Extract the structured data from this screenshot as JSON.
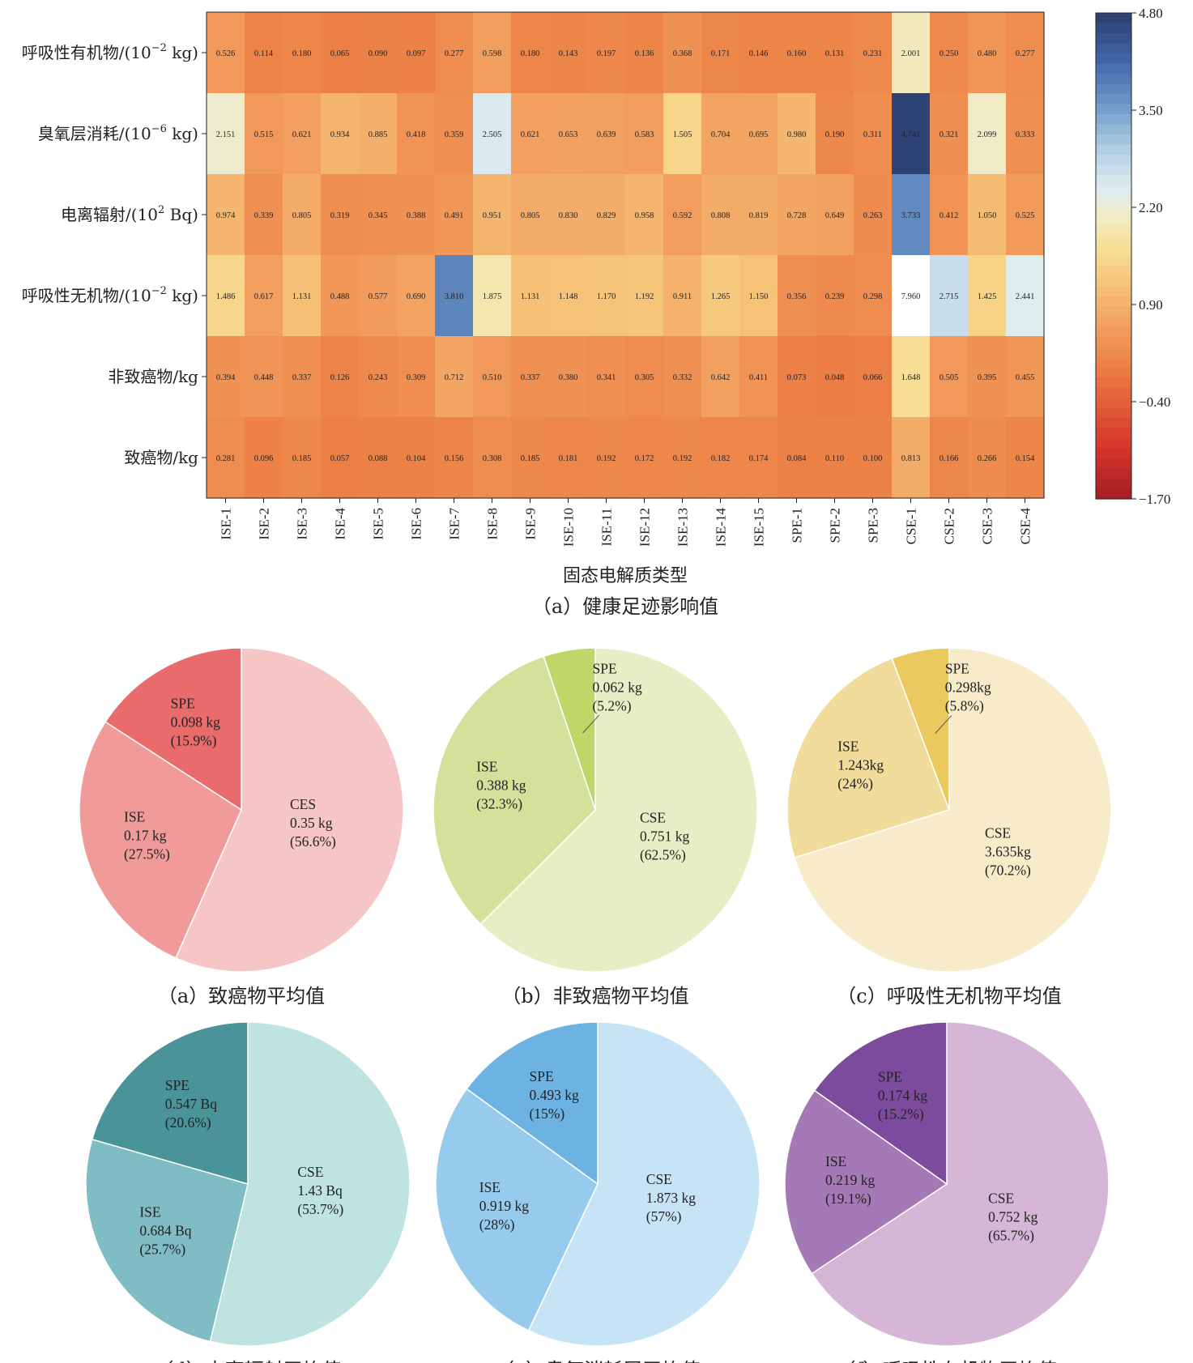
{
  "chart_data": [
    {
      "type": "heatmap",
      "rows": [
        {
          "label": "呼吸性有机物/(10",
          "sup": "−2",
          "suffix": " kg)"
        },
        {
          "label": "臭氧层消耗/(10",
          "sup": "−6",
          "suffix": " kg)"
        },
        {
          "label": "电离辐射/(10",
          "sup": "2",
          "suffix": " Bq)"
        },
        {
          "label": "呼吸性无机物/(10",
          "sup": "−2",
          "suffix": " kg)"
        },
        {
          "label": "非致癌物/kg",
          "sup": "",
          "suffix": ""
        },
        {
          "label": "致癌物/kg",
          "sup": "",
          "suffix": ""
        }
      ],
      "columns": [
        "ISE-1",
        "ISE-2",
        "ISE-3",
        "ISE-4",
        "ISE-5",
        "ISE-6",
        "ISE-7",
        "ISE-8",
        "ISE-9",
        "ISE-10",
        "ISE-11",
        "ISE-12",
        "ISE-13",
        "ISE-14",
        "ISE-15",
        "SPE-1",
        "SPE-2",
        "SPE-3",
        "CSE-1",
        "CSE-2",
        "CSE-3",
        "CSE-4"
      ],
      "values": [
        [
          "0.526",
          "0.114",
          "0.180",
          "0.065",
          "0.090",
          "0.097",
          "0.277",
          "0.598",
          "0.180",
          "0.143",
          "0.197",
          "0.136",
          "0.368",
          "0.171",
          "0.146",
          "0.160",
          "0.131",
          "0.231",
          "2.001",
          "0.250",
          "0.480",
          "0.277"
        ],
        [
          "2.151",
          "0.515",
          "0.621",
          "0.934",
          "0.885",
          "0.418",
          "0.359",
          "2.505",
          "0.621",
          "0.653",
          "0.639",
          "0.583",
          "1.505",
          "0.704",
          "0.695",
          "0.980",
          "0.190",
          "0.311",
          "4.741",
          "0.321",
          "2.099",
          "0.333"
        ],
        [
          "0.974",
          "0.339",
          "0.805",
          "0.319",
          "0.345",
          "0.388",
          "0.491",
          "0.951",
          "0.805",
          "0.830",
          "0.829",
          "0.958",
          "0.592",
          "0.808",
          "0.819",
          "0.728",
          "0.649",
          "0.263",
          "3.733",
          "0.412",
          "1.050",
          "0.525"
        ],
        [
          "1.486",
          "0.617",
          "1.131",
          "0.488",
          "0.577",
          "0.690",
          "3.810",
          "1.875",
          "1.131",
          "1.148",
          "1.170",
          "1.192",
          "0.911",
          "1.265",
          "1.150",
          "0.356",
          "0.239",
          "0.298",
          "7.960",
          "2.715",
          "1.425",
          "2.441"
        ],
        [
          "0.394",
          "0.448",
          "0.337",
          "0.126",
          "0.243",
          "0.309",
          "0.712",
          "0.510",
          "0.337",
          "0.380",
          "0.341",
          "0.305",
          "0.332",
          "0.642",
          "0.411",
          "0.073",
          "0.048",
          "0.066",
          "1.648",
          "0.505",
          "0.395",
          "0.455"
        ],
        [
          "0.281",
          "0.096",
          "0.185",
          "0.057",
          "0.088",
          "0.104",
          "0.156",
          "0.308",
          "0.185",
          "0.181",
          "0.192",
          "0.172",
          "0.192",
          "0.182",
          "0.174",
          "0.084",
          "0.110",
          "0.100",
          "0.813",
          "0.166",
          "0.266",
          "0.154"
        ]
      ],
      "xlabel": "固态电解质类型",
      "caption": "（a）健康足迹影响值",
      "colorbar": {
        "range": [
          -1.7,
          4.8
        ],
        "ticks": [
          "4.80",
          "3.50",
          "2.20",
          "0.90",
          "−0.40",
          "−1.70"
        ]
      }
    },
    {
      "type": "pie",
      "caption": "（a）致癌物平均值",
      "colors": [
        "#f6c5c5",
        "#f09a9a",
        "#e96b6b"
      ],
      "slices": [
        {
          "name": "CES",
          "value": 0.35,
          "unit": "0.35 kg",
          "pct": "(56.6%)"
        },
        {
          "name": "ISE",
          "value": 0.17,
          "unit": "0.17 kg",
          "pct": "(27.5%)"
        },
        {
          "name": "SPE",
          "value": 0.098,
          "unit": "0.098 kg",
          "pct": "(15.9%)"
        }
      ]
    },
    {
      "type": "pie",
      "caption": "（b）非致癌物平均值",
      "colors": [
        "#e5eec4",
        "#d3e19a",
        "#bfd768"
      ],
      "slices": [
        {
          "name": "CSE",
          "value": 0.751,
          "unit": "0.751 kg",
          "pct": "(62.5%)"
        },
        {
          "name": "ISE",
          "value": 0.388,
          "unit": "0.388 kg",
          "pct": "(32.3%)"
        },
        {
          "name": "SPE",
          "value": 0.062,
          "unit": "0.062 kg",
          "pct": "(5.2%)"
        }
      ]
    },
    {
      "type": "pie",
      "caption": "（c）呼吸性无机物平均值",
      "colors": [
        "#f7ebc9",
        "#f1dc9c",
        "#ebc95f"
      ],
      "slices": [
        {
          "name": "CSE",
          "value": 3.635,
          "unit": "3.635kg",
          "pct": "(70.2%)"
        },
        {
          "name": "ISE",
          "value": 1.243,
          "unit": "1.243kg",
          "pct": "(24%)"
        },
        {
          "name": "SPE",
          "value": 0.298,
          "unit": "0.298kg",
          "pct": "(5.8%)"
        }
      ]
    },
    {
      "type": "pie",
      "caption": "（d）电离辐射平均值",
      "colors": [
        "#bfe3e0",
        "#7fbcc3",
        "#4a9499"
      ],
      "slices": [
        {
          "name": "CSE",
          "value": 1.43,
          "unit": "1.43 Bq",
          "pct": "(53.7%)"
        },
        {
          "name": "ISE",
          "value": 0.684,
          "unit": "0.684 Bq",
          "pct": "(25.7%)"
        },
        {
          "name": "SPE",
          "value": 0.547,
          "unit": "0.547 Bq",
          "pct": "(20.6%)"
        }
      ]
    },
    {
      "type": "pie",
      "caption": "（e）臭氧消耗层平均值",
      "colors": [
        "#c6e4f6",
        "#97cbee",
        "#6cb3e4"
      ],
      "slices": [
        {
          "name": "CSE",
          "value": 1.873,
          "unit": "1.873 kg",
          "pct": "(57%)"
        },
        {
          "name": "ISE",
          "value": 0.919,
          "unit": "0.919 kg",
          "pct": "(28%)"
        },
        {
          "name": "SPE",
          "value": 0.493,
          "unit": "0.493 kg",
          "pct": "(15%)"
        }
      ]
    },
    {
      "type": "pie",
      "caption": "（f）呼吸性有机物平均值",
      "colors": [
        "#d5b6d6",
        "#a479b5",
        "#7d4b9e"
      ],
      "slices": [
        {
          "name": "CSE",
          "value": 0.752,
          "unit": "0.752 kg",
          "pct": "(65.7%)"
        },
        {
          "name": "ISE",
          "value": 0.219,
          "unit": "0.219 kg",
          "pct": "(19.1%)"
        },
        {
          "name": "SPE",
          "value": 0.174,
          "unit": "0.174 kg",
          "pct": "(15.2%)"
        }
      ]
    }
  ]
}
